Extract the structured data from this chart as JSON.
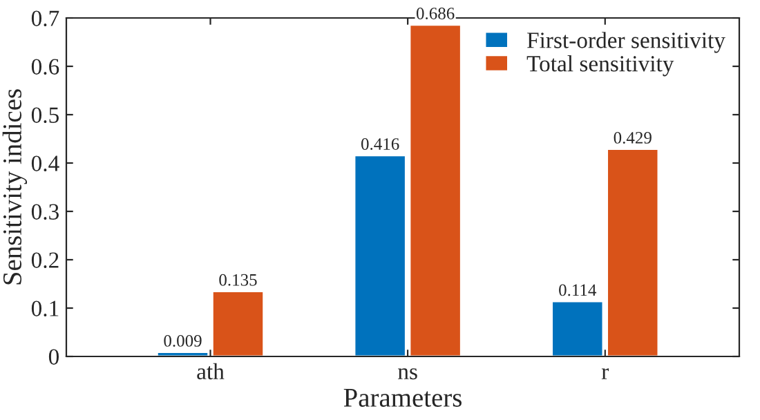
{
  "chart_data": {
    "type": "bar",
    "xlabel": "Parameters",
    "ylabel": "Sensitivity indices",
    "categories": [
      "ath",
      "ns",
      "r"
    ],
    "series": [
      {
        "name": "First-order sensitivity",
        "color": "#0072bd",
        "values": [
          0.009,
          0.416,
          0.114
        ]
      },
      {
        "name": "Total sensitivity",
        "color": "#d95319",
        "values": [
          0.135,
          0.686,
          0.429
        ]
      }
    ],
    "ylim": [
      0,
      0.7
    ],
    "yticks": [
      0,
      0.1,
      0.2,
      0.3,
      0.4,
      0.5,
      0.6,
      0.7
    ],
    "data_labels": true,
    "legend": "top right",
    "grid": false
  }
}
